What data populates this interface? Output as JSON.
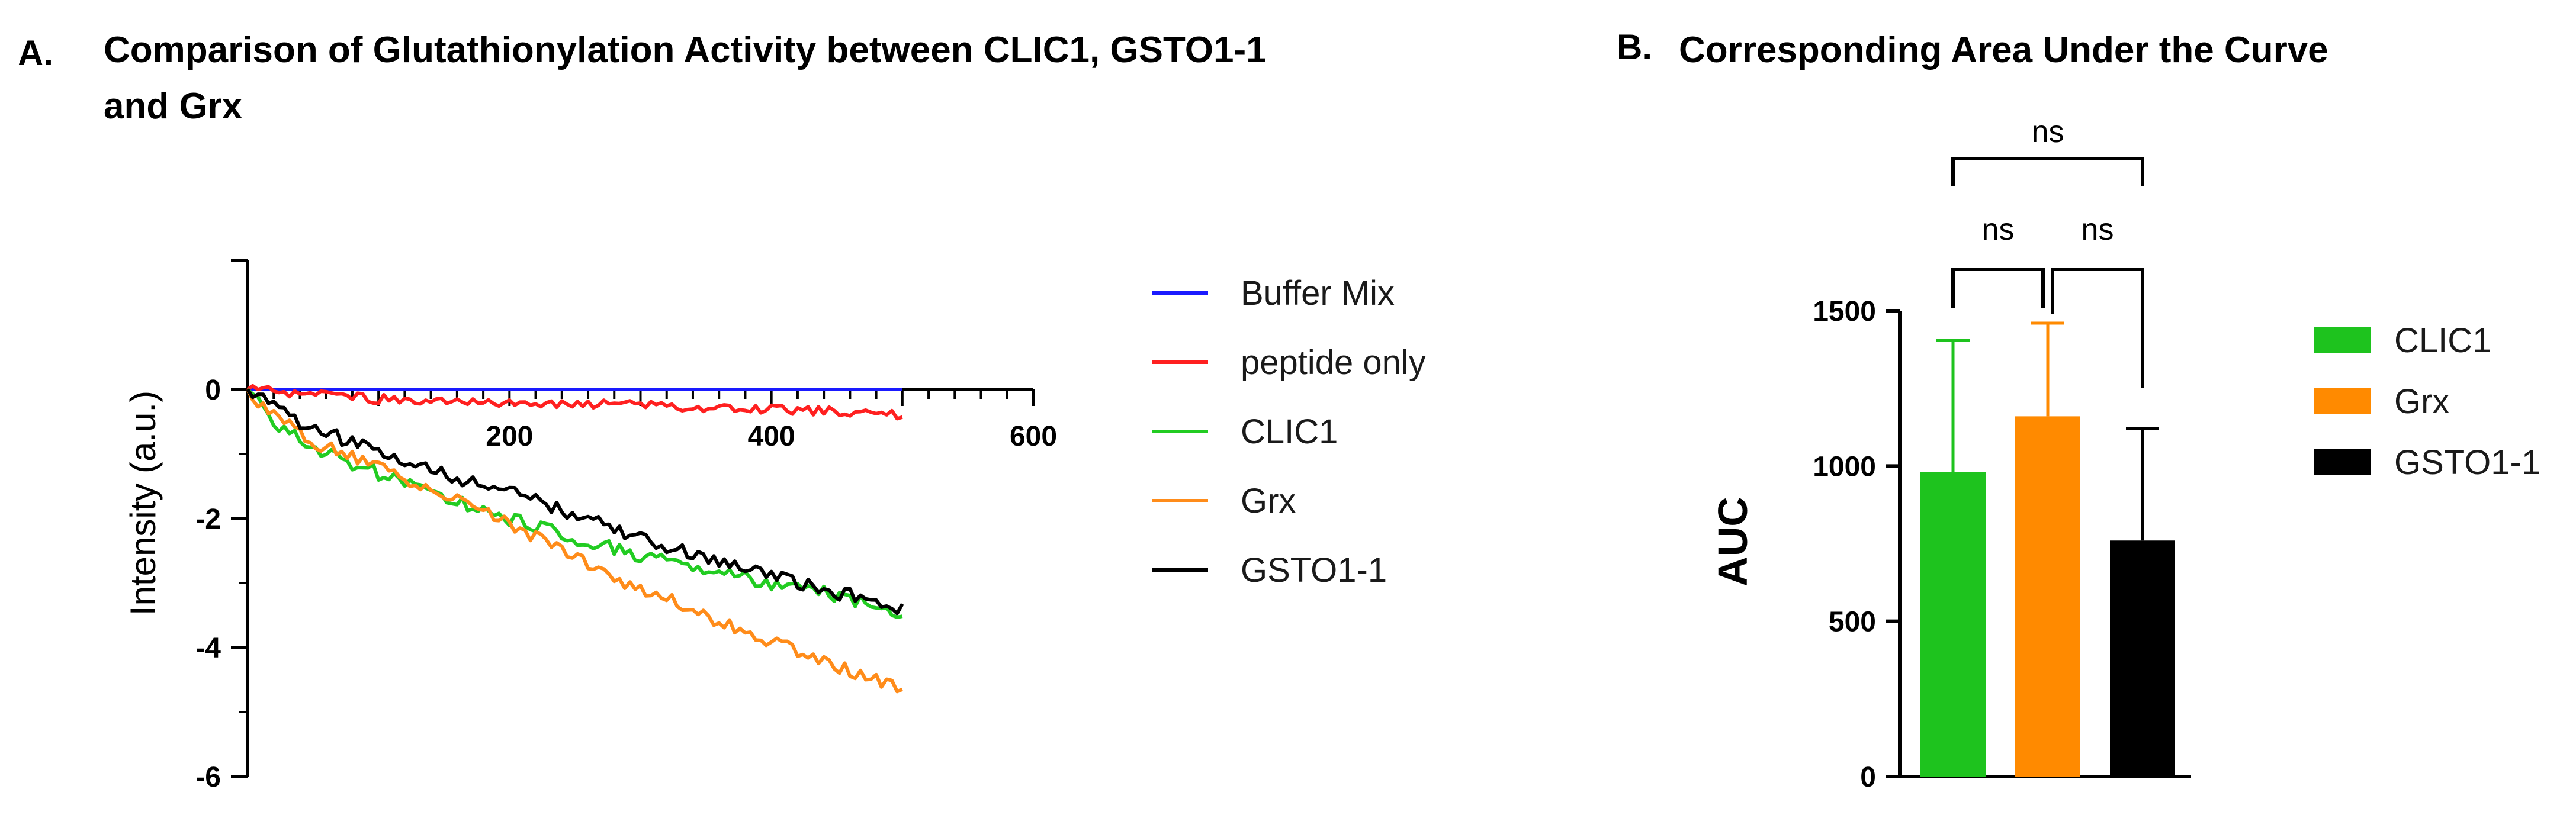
{
  "panelA": {
    "letter": "A.",
    "title_line1": "Comparison of Glutathionylation Activity between CLIC1, GSTO1-1",
    "title_line2": "and Grx"
  },
  "panelB": {
    "letter": "B.",
    "title": "Corresponding Area Under the Curve"
  },
  "chart_data": [
    {
      "type": "line",
      "title": "Comparison of Glutathionylation Activity between CLIC1, GSTO1-1 and Grx",
      "xlabel": "",
      "ylabel": "Intensity (a.u.)",
      "xlim": [
        0,
        600
      ],
      "ylim": [
        -6,
        2
      ],
      "xticks": [
        "200",
        "400",
        "600"
      ],
      "yticks": [
        "0",
        "-2",
        "-4",
        "-6"
      ],
      "legend_position": "right",
      "series": [
        {
          "name": "Buffer Mix",
          "color": "#1a1aff",
          "x": [
            0,
            100,
            200,
            300,
            400,
            500
          ],
          "values": [
            0,
            0,
            0,
            0,
            0,
            0
          ]
        },
        {
          "name": "peptide only",
          "color": "#ff2020",
          "x": [
            0,
            100,
            200,
            300,
            400,
            500
          ],
          "values": [
            0,
            -0.15,
            -0.2,
            -0.25,
            -0.3,
            -0.4
          ]
        },
        {
          "name": "CLIC1",
          "color": "#22cc22",
          "x": [
            0,
            25,
            50,
            100,
            150,
            200,
            250,
            300,
            350,
            400,
            450,
            500
          ],
          "values": [
            0,
            -0.6,
            -0.9,
            -1.3,
            -1.7,
            -2.0,
            -2.3,
            -2.6,
            -2.8,
            -3.0,
            -3.2,
            -3.45
          ]
        },
        {
          "name": "Grx",
          "color": "#ff8c1a",
          "x": [
            0,
            25,
            50,
            100,
            150,
            200,
            250,
            300,
            350,
            400,
            450,
            500
          ],
          "values": [
            0,
            -0.5,
            -0.8,
            -1.2,
            -1.65,
            -2.1,
            -2.6,
            -3.1,
            -3.5,
            -3.9,
            -4.3,
            -4.65
          ]
        },
        {
          "name": "GSTO1-1",
          "color": "#000000",
          "x": [
            0,
            25,
            50,
            100,
            150,
            200,
            250,
            300,
            350,
            400,
            450,
            500
          ],
          "values": [
            0,
            -0.35,
            -0.6,
            -0.95,
            -1.3,
            -1.6,
            -1.95,
            -2.3,
            -2.6,
            -2.9,
            -3.15,
            -3.4
          ]
        }
      ]
    },
    {
      "type": "bar",
      "title": "Corresponding Area Under the Curve",
      "xlabel": "",
      "ylabel": "AUC",
      "ylim": [
        0,
        1500
      ],
      "yticks": [
        "0",
        "500",
        "1000",
        "1500"
      ],
      "legend_position": "right",
      "categories": [
        "CLIC1",
        "Grx",
        "GSTO1-1"
      ],
      "values": [
        980,
        1160,
        760
      ],
      "errors": [
        425,
        300,
        360
      ],
      "colors": [
        "#1ec31e",
        "#ff8a00",
        "#000000"
      ],
      "error_colors": [
        "#1ec31e",
        "#ff8a00",
        "#000000"
      ],
      "significance": [
        {
          "from": "CLIC1",
          "to": "Grx",
          "label": "ns"
        },
        {
          "from": "Grx",
          "to": "GSTO1-1",
          "label": "ns"
        },
        {
          "from": "CLIC1",
          "to": "GSTO1-1",
          "label": "ns"
        }
      ]
    }
  ]
}
